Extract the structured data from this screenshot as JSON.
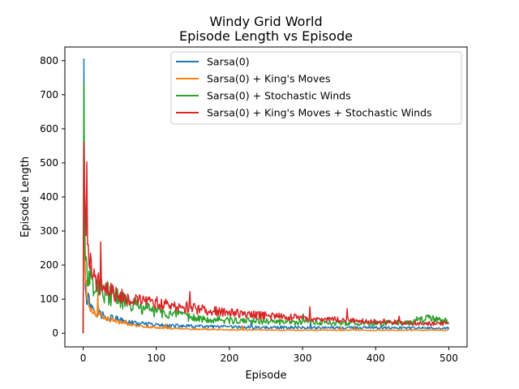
{
  "chart_data": {
    "type": "line",
    "title": "Windy Grid World",
    "subtitle": "Episode Length vs Episode",
    "xlabel": "Episode",
    "ylabel": "Episode Length",
    "xlim": [
      -25,
      525
    ],
    "ylim": [
      -40,
      840
    ],
    "xticks": [
      0,
      100,
      200,
      300,
      400,
      500
    ],
    "yticks": [
      0,
      100,
      200,
      300,
      400,
      500,
      600,
      700,
      800
    ],
    "grid": false,
    "legend_position": "top-right",
    "series": [
      {
        "name": "Sarsa(0)",
        "color": "#1f77b4",
        "x": [
          0,
          1,
          2,
          3,
          5,
          8,
          10,
          12,
          15,
          20,
          25,
          30,
          40,
          50,
          60,
          80,
          100,
          120,
          150,
          200,
          250,
          300,
          350,
          400,
          450,
          500
        ],
        "values": [
          0,
          805,
          280,
          150,
          110,
          95,
          85,
          80,
          72,
          62,
          55,
          50,
          45,
          38,
          32,
          27,
          24,
          22,
          20,
          18,
          17,
          17,
          16,
          16,
          15,
          15
        ],
        "noise": 0.25
      },
      {
        "name": "Sarsa(0) + King's Moves",
        "color": "#ff7f0e",
        "x": [
          0,
          1,
          2,
          3,
          5,
          8,
          10,
          15,
          20,
          30,
          40,
          50,
          60,
          80,
          100,
          120,
          150,
          200,
          300,
          400,
          500
        ],
        "values": [
          0,
          390,
          250,
          160,
          110,
          85,
          75,
          62,
          55,
          45,
          38,
          32,
          28,
          20,
          17,
          14,
          12,
          10,
          9,
          9,
          9
        ],
        "noise": 0.18
      },
      {
        "name": "Sarsa(0) + Stochastic Winds",
        "color": "#2ca02c",
        "x": [
          0,
          1,
          2,
          3,
          5,
          8,
          10,
          15,
          20,
          25,
          30,
          40,
          50,
          60,
          80,
          100,
          120,
          150,
          200,
          250,
          300,
          350,
          400,
          450,
          470,
          500
        ],
        "values": [
          0,
          735,
          330,
          230,
          190,
          165,
          155,
          150,
          145,
          130,
          120,
          110,
          100,
          90,
          75,
          65,
          55,
          45,
          38,
          34,
          32,
          30,
          30,
          30,
          45,
          30
        ],
        "noise": 0.28
      },
      {
        "name": "Sarsa(0) + King's Moves + Stochastic Winds",
        "color": "#d62728",
        "x": [
          0,
          1,
          2,
          3,
          5,
          8,
          10,
          15,
          20,
          25,
          30,
          40,
          50,
          60,
          80,
          100,
          120,
          150,
          200,
          250,
          300,
          350,
          400,
          450,
          500
        ],
        "values": [
          0,
          560,
          420,
          350,
          270,
          220,
          200,
          170,
          150,
          140,
          130,
          120,
          115,
          105,
          95,
          88,
          80,
          72,
          60,
          52,
          45,
          40,
          35,
          30,
          28
        ],
        "noise": 0.22
      }
    ]
  }
}
